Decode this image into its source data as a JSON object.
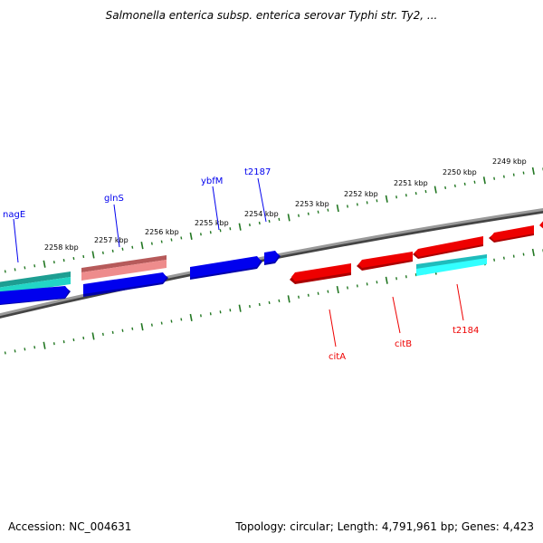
{
  "title": "Salmonella enterica subsp. enterica serovar Typhi str. Ty2, ...",
  "footer": {
    "accession_label": "Accession:",
    "accession": "NC_004631",
    "topology_label": "Topology:",
    "topology": "circular",
    "length_label": "Length:",
    "length": "4,791,961 bp",
    "genes_label": "Genes:",
    "genes": "4,423"
  },
  "colors": {
    "forward_strand": "#0000ee",
    "reverse_strand": "#ee0000",
    "pseudo_forward": "#d97676",
    "rna_cyan": "#22dddd",
    "teal": "#22bbaa",
    "tick": "#227722",
    "backbone": "#888888"
  },
  "scale": {
    "unit": "kbp",
    "labels": [
      "2249 kbp",
      "2250 kbp",
      "2251 kbp",
      "2252 kbp",
      "2253 kbp",
      "2254 kbp",
      "2255 kbp",
      "2256 kbp",
      "2257 kbp",
      "2258 kbp"
    ]
  },
  "genes": [
    {
      "name": "nagE",
      "strand": "forward",
      "color": "blue"
    },
    {
      "name": "glnS",
      "strand": "forward",
      "color": "blue"
    },
    {
      "name": "ybfM",
      "strand": "forward",
      "color": "blue"
    },
    {
      "name": "t2187",
      "strand": "forward",
      "color": "blue"
    },
    {
      "name": "citA",
      "strand": "reverse",
      "color": "red"
    },
    {
      "name": "citB",
      "strand": "reverse",
      "color": "red"
    },
    {
      "name": "t2184",
      "strand": "reverse",
      "color": "red"
    }
  ]
}
